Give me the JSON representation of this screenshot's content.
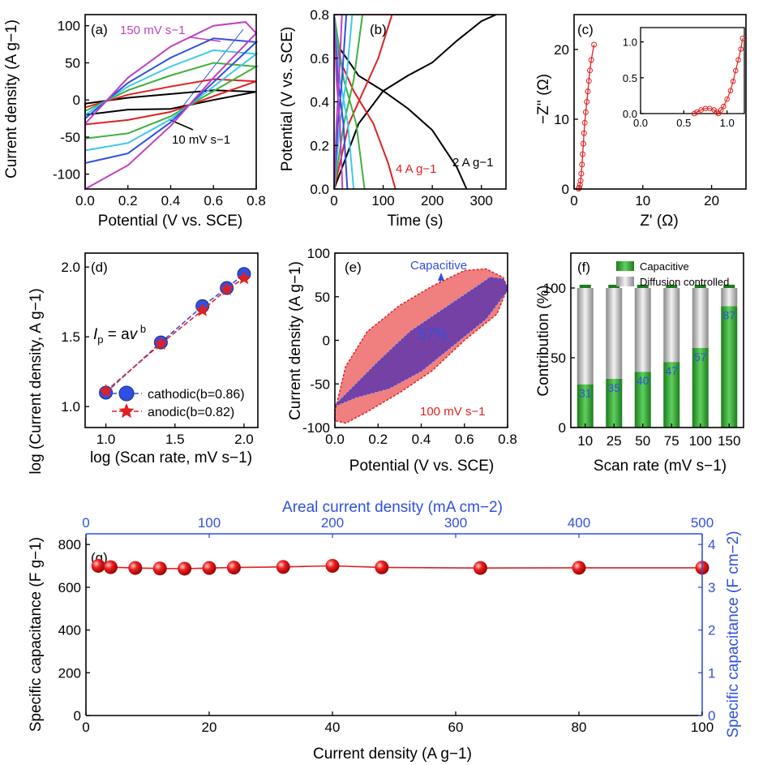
{
  "chart_data": [
    {
      "panel_label": "(a)",
      "type": "line",
      "xlabel": "Potential (V vs. SCE)",
      "ylabel": "Current density (A g−1)",
      "xlim": [
        0,
        0.8
      ],
      "ylim": [
        -120,
        115
      ],
      "xticks": [
        "0.0",
        "0.2",
        "0.4",
        "0.6",
        "0.8"
      ],
      "yticks": [
        "-100",
        "-50",
        "0",
        "50",
        "100"
      ],
      "annotations": [
        "150 mV s−1",
        "10 mV s−1"
      ],
      "series": [
        {
          "color": "#000000",
          "values": [
            [
              0.0,
              -5
            ],
            [
              0.2,
              3
            ],
            [
              0.4,
              8
            ],
            [
              0.6,
              13
            ],
            [
              0.8,
              11
            ],
            [
              0.6,
              0
            ],
            [
              0.4,
              -12
            ],
            [
              0.2,
              -13
            ],
            [
              0.0,
              -20
            ]
          ]
        },
        {
          "color": "#e02020",
          "values": [
            [
              0.0,
              -10
            ],
            [
              0.2,
              7
            ],
            [
              0.4,
              18
            ],
            [
              0.6,
              28
            ],
            [
              0.8,
              25
            ],
            [
              0.6,
              5
            ],
            [
              0.4,
              -16
            ],
            [
              0.2,
              -27
            ],
            [
              0.0,
              -33
            ]
          ]
        },
        {
          "color": "#40b040",
          "values": [
            [
              0.0,
              -15
            ],
            [
              0.2,
              13
            ],
            [
              0.4,
              33
            ],
            [
              0.6,
              50
            ],
            [
              0.8,
              45
            ],
            [
              0.6,
              12
            ],
            [
              0.4,
              -22
            ],
            [
              0.2,
              -45
            ],
            [
              0.0,
              -52
            ]
          ]
        },
        {
          "color": "#40c8e8",
          "values": [
            [
              0.0,
              -20
            ],
            [
              0.2,
              18
            ],
            [
              0.4,
              45
            ],
            [
              0.6,
              67
            ],
            [
              0.8,
              62
            ],
            [
              0.6,
              18
            ],
            [
              0.4,
              -26
            ],
            [
              0.2,
              -58
            ],
            [
              0.0,
              -68
            ]
          ]
        },
        {
          "color": "#3050e0",
          "values": [
            [
              0.0,
              -25
            ],
            [
              0.2,
              23
            ],
            [
              0.4,
              57
            ],
            [
              0.6,
              83
            ],
            [
              0.8,
              78
            ],
            [
              0.6,
              24
            ],
            [
              0.4,
              -30
            ],
            [
              0.2,
              -72
            ],
            [
              0.0,
              -85
            ]
          ]
        },
        {
          "color": "#c040c0",
          "values": [
            [
              0.0,
              -32
            ],
            [
              0.2,
              30
            ],
            [
              0.4,
              72
            ],
            [
              0.6,
              100
            ],
            [
              0.75,
              105
            ],
            [
              0.8,
              90
            ],
            [
              0.6,
              30
            ],
            [
              0.4,
              -35
            ],
            [
              0.2,
              -88
            ],
            [
              0.0,
              -120
            ]
          ]
        }
      ]
    },
    {
      "panel_label": "(b)",
      "type": "line",
      "xlabel": "Time (s)",
      "ylabel": "Potential (V vs. SCE)",
      "xlim": [
        0,
        350
      ],
      "ylim": [
        0,
        0.8
      ],
      "xticks": [
        "0",
        "100",
        "200",
        "300"
      ],
      "yticks": [
        "0.0",
        "0.2",
        "0.4",
        "0.6",
        "0.8"
      ],
      "annotations": [
        "4 A g−1",
        "2 A g−1"
      ],
      "series": [
        {
          "color": "#000000",
          "values": [
            [
              0,
              0
            ],
            [
              50,
              0.3
            ],
            [
              100,
              0.45
            ],
            [
              150,
              0.52
            ],
            [
              200,
              0.58
            ],
            [
              250,
              0.68
            ],
            [
              300,
              0.77
            ],
            [
              330,
              0.8
            ],
            [
              330,
              0.8
            ],
            [
              0,
              0.8
            ],
            [
              10,
              0.65
            ],
            [
              50,
              0.52
            ],
            [
              100,
              0.45
            ],
            [
              150,
              0.37
            ],
            [
              200,
              0.27
            ],
            [
              250,
              0.1
            ],
            [
              270,
              0
            ]
          ]
        },
        {
          "color": "#e02020",
          "values": [
            [
              0,
              0
            ],
            [
              30,
              0.3
            ],
            [
              60,
              0.45
            ],
            [
              90,
              0.6
            ],
            [
              118,
              0.8
            ],
            [
              0,
              0.8
            ],
            [
              10,
              0.6
            ],
            [
              40,
              0.45
            ],
            [
              80,
              0.3
            ],
            [
              110,
              0.12
            ],
            [
              125,
              0
            ]
          ]
        },
        {
          "color": "#40b040",
          "values": [
            [
              0,
              0
            ],
            [
              20,
              0.3
            ],
            [
              40,
              0.5
            ],
            [
              58,
              0.8
            ],
            [
              0,
              0.8
            ],
            [
              20,
              0.5
            ],
            [
              45,
              0.3
            ],
            [
              62,
              0
            ]
          ]
        },
        {
          "color": "#40c8e8",
          "values": [
            [
              0,
              0
            ],
            [
              12,
              0.3
            ],
            [
              25,
              0.5
            ],
            [
              37,
              0.8
            ],
            [
              0,
              0.8
            ],
            [
              12,
              0.5
            ],
            [
              28,
              0.3
            ],
            [
              40,
              0
            ]
          ]
        },
        {
          "color": "#3050e0",
          "values": [
            [
              0,
              0
            ],
            [
              8,
              0.3
            ],
            [
              16,
              0.5
            ],
            [
              25,
              0.8
            ],
            [
              0,
              0.8
            ],
            [
              8,
              0.5
            ],
            [
              19,
              0.3
            ],
            [
              27,
              0
            ]
          ]
        },
        {
          "color": "#c040c0",
          "values": [
            [
              0,
              0
            ],
            [
              5,
              0.3
            ],
            [
              10,
              0.5
            ],
            [
              16,
              0.8
            ],
            [
              0,
              0.8
            ],
            [
              5,
              0.5
            ],
            [
              12,
              0.3
            ],
            [
              17,
              0
            ]
          ]
        }
      ]
    },
    {
      "panel_label": "(c)",
      "type": "scatter",
      "xlabel": "Z' (Ω)",
      "ylabel": "−Z'' (Ω)",
      "xlim": [
        0,
        25
      ],
      "ylim": [
        0,
        25
      ],
      "xticks": [
        "0",
        "10",
        "20"
      ],
      "yticks": [
        "0",
        "10",
        "20"
      ],
      "series": [
        {
          "color": "#e02020",
          "values": [
            [
              0.65,
              0.05
            ],
            [
              0.75,
              0.2
            ],
            [
              0.85,
              0.6
            ],
            [
              0.95,
              1.2
            ],
            [
              1.05,
              2.2
            ],
            [
              1.15,
              3.5
            ],
            [
              1.25,
              5
            ],
            [
              1.35,
              6.5
            ],
            [
              1.45,
              8
            ],
            [
              1.55,
              9.5
            ],
            [
              1.7,
              11
            ],
            [
              1.85,
              12.5
            ],
            [
              2.0,
              14
            ],
            [
              2.15,
              15.5
            ],
            [
              2.3,
              17
            ],
            [
              2.5,
              18.5
            ],
            [
              2.9,
              20.7
            ]
          ]
        }
      ],
      "inset": {
        "xlim": [
          0,
          1.2
        ],
        "ylim": [
          0,
          1.2
        ],
        "xticks": [
          "0.0",
          "0.5",
          "1.0"
        ],
        "yticks": [
          "0.0",
          "0.5",
          "1.0"
        ],
        "values": [
          [
            0.62,
            0.0
          ],
          [
            0.65,
            0.02
          ],
          [
            0.7,
            0.05
          ],
          [
            0.75,
            0.07
          ],
          [
            0.8,
            0.07
          ],
          [
            0.85,
            0.05
          ],
          [
            0.88,
            0.02
          ],
          [
            0.9,
            0.0
          ],
          [
            0.93,
            0.05
          ],
          [
            0.96,
            0.1
          ],
          [
            1.0,
            0.2
          ],
          [
            1.04,
            0.32
          ],
          [
            1.07,
            0.45
          ],
          [
            1.1,
            0.6
          ],
          [
            1.13,
            0.75
          ],
          [
            1.16,
            0.9
          ],
          [
            1.18,
            1.05
          ]
        ]
      }
    },
    {
      "panel_label": "(d)",
      "type": "scatter",
      "xlabel": "log (Scan rate, mV s−1)",
      "ylabel": "log (Current density, A g−1)",
      "xlim": [
        0.85,
        2.1
      ],
      "ylim": [
        0.85,
        2.1
      ],
      "xticks": [
        "1.0",
        "1.5",
        "2.0"
      ],
      "yticks": [
        "1.0",
        "1.5",
        "2.0"
      ],
      "equation": "I_p = aν^b",
      "series": [
        {
          "name": "cathodic(b=0.86)",
          "color": "#3050e0",
          "marker": "sphere",
          "x": [
            1.0,
            1.398,
            1.699,
            1.875,
            2.0
          ],
          "y": [
            1.1,
            1.46,
            1.72,
            1.85,
            1.95
          ]
        },
        {
          "name": "anodic(b=0.82)",
          "color": "#e02020",
          "marker": "star",
          "x": [
            1.0,
            1.398,
            1.699,
            1.875,
            2.0
          ],
          "y": [
            1.11,
            1.45,
            1.69,
            1.84,
            1.92
          ]
        }
      ]
    },
    {
      "panel_label": "(e)",
      "type": "area",
      "xlabel": "Potential (V vs. SCE)",
      "ylabel": "Current density (A g−1)",
      "xlim": [
        0,
        0.8
      ],
      "ylim": [
        -100,
        100
      ],
      "xticks": [
        "0.0",
        "0.2",
        "0.4",
        "0.6",
        "0.8"
      ],
      "yticks": [
        "-100",
        "-50",
        "0",
        "50",
        "100"
      ],
      "annotations": [
        "Capacitive",
        "57%",
        "100 mV s−1"
      ],
      "outer": [
        [
          0.0,
          -82
        ],
        [
          0.05,
          -30
        ],
        [
          0.15,
          10
        ],
        [
          0.3,
          40
        ],
        [
          0.45,
          62
        ],
        [
          0.6,
          80
        ],
        [
          0.7,
          82
        ],
        [
          0.78,
          72
        ],
        [
          0.8,
          60
        ],
        [
          0.75,
          30
        ],
        [
          0.6,
          0
        ],
        [
          0.45,
          -35
        ],
        [
          0.3,
          -60
        ],
        [
          0.15,
          -82
        ],
        [
          0.05,
          -95
        ],
        [
          0.0,
          -92
        ]
      ],
      "inner": [
        [
          0.0,
          -75
        ],
        [
          0.1,
          -50
        ],
        [
          0.2,
          -25
        ],
        [
          0.35,
          10
        ],
        [
          0.5,
          35
        ],
        [
          0.65,
          60
        ],
        [
          0.72,
          72
        ],
        [
          0.78,
          70
        ],
        [
          0.8,
          58
        ],
        [
          0.7,
          25
        ],
        [
          0.55,
          -5
        ],
        [
          0.4,
          -35
        ],
        [
          0.25,
          -55
        ],
        [
          0.1,
          -65
        ],
        [
          0.0,
          -75
        ]
      ]
    },
    {
      "panel_label": "(f)",
      "type": "bar",
      "xlabel": "Scan rate (mV s−1)",
      "ylabel": "Contribution (%)",
      "ylim": [
        0,
        125
      ],
      "yticks": [
        "0",
        "50",
        "100"
      ],
      "categories": [
        "10",
        "25",
        "50",
        "75",
        "100",
        "150"
      ],
      "series": [
        {
          "name": "Capacitive",
          "color": "#2fa02f",
          "values": [
            31,
            35,
            40,
            47,
            57,
            87
          ]
        },
        {
          "name": "Diffusion controlled",
          "color": "#c0c0c0",
          "values": [
            69,
            65,
            60,
            53,
            43,
            13
          ]
        }
      ]
    },
    {
      "panel_label": "(g)",
      "type": "scatter",
      "xlabel": "Current density (A g−1)",
      "ylabel": "Specific capacitance (F g−1)",
      "top_xlabel": "Areal current density (mA cm−2)",
      "right_ylabel": "Specific capacitance (F cm−2)",
      "xlim": [
        0,
        100
      ],
      "ylim": [
        0,
        850
      ],
      "top_xlim": [
        0,
        500
      ],
      "right_ylim": [
        0,
        4.25
      ],
      "xticks": [
        "0",
        "20",
        "40",
        "60",
        "80",
        "100"
      ],
      "yticks": [
        "0",
        "200",
        "400",
        "600",
        "800"
      ],
      "top_xticks": [
        "0",
        "100",
        "200",
        "300",
        "400",
        "500"
      ],
      "right_yticks": [
        "0",
        "1",
        "2",
        "3",
        "4"
      ],
      "series": [
        {
          "color": "#e02020",
          "x": [
            2,
            4,
            8,
            12,
            16,
            20,
            24,
            32,
            40,
            48,
            64,
            80,
            100
          ],
          "y": [
            700,
            694,
            690,
            688,
            687,
            690,
            692,
            695,
            700,
            693,
            690,
            691,
            691
          ]
        }
      ]
    }
  ]
}
